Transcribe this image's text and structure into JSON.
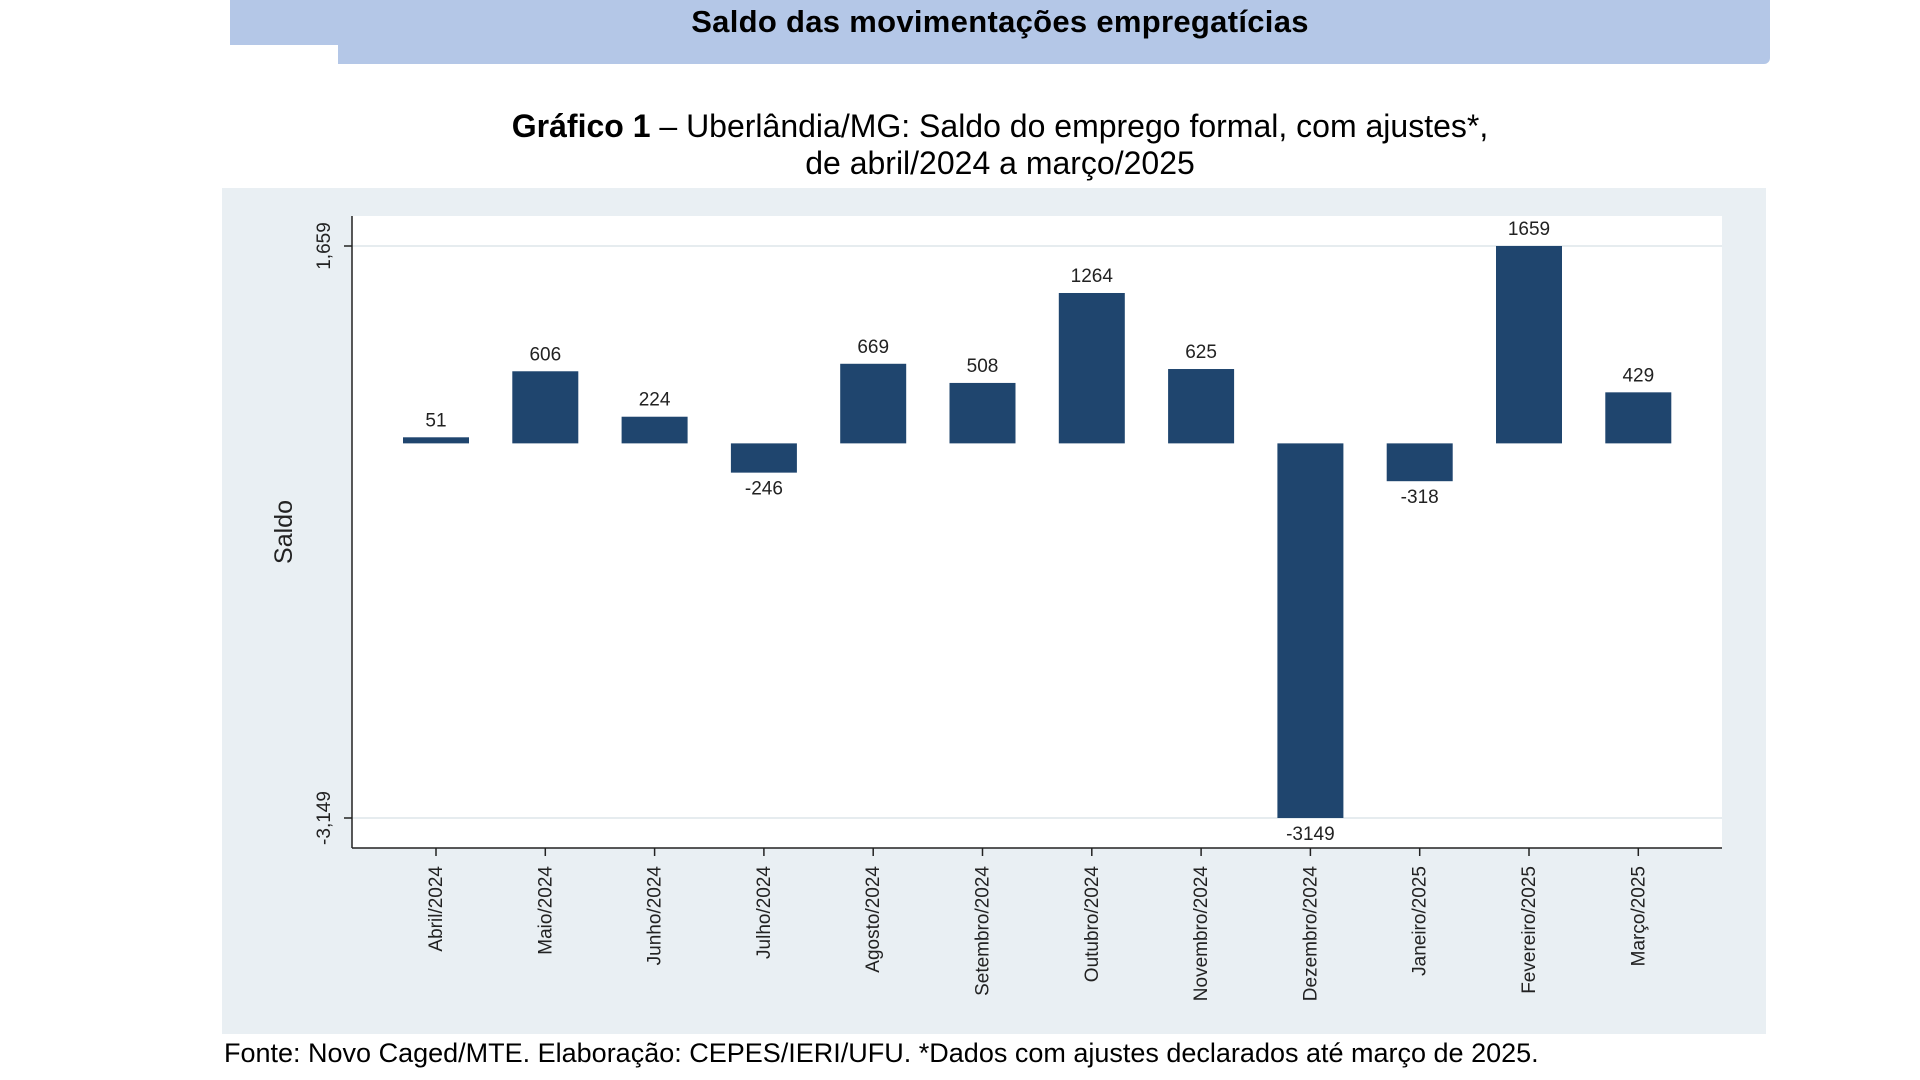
{
  "header": {
    "title": "Saldo das movimentações empregatícias"
  },
  "figure": {
    "label": "Gráfico 1",
    "title_rest": " – Uberlândia/MG: Saldo do emprego formal, com ajustes*,",
    "title_line2": "de abril/2024 a março/2025"
  },
  "colors": {
    "bar": "#1f456e",
    "panel": "#e9eff3",
    "plot_bg": "#ffffff",
    "header_band": "#b4c7e7"
  },
  "chart_data": {
    "type": "bar",
    "title": "Uberlândia/MG: Saldo do emprego formal, com ajustes*, de abril/2024 a março/2025",
    "ylabel": "Saldo",
    "xlabel": "",
    "categories": [
      "Abril/2024",
      "Maio/2024",
      "Junho/2024",
      "Julho/2024",
      "Agosto/2024",
      "Setembro/2024",
      "Outubro/2024",
      "Novembro/2024",
      "Dezembro/2024",
      "Janeiro/2025",
      "Fevereiro/2025",
      "Março/2025"
    ],
    "values": [
      51,
      606,
      224,
      -246,
      669,
      508,
      1264,
      625,
      -3149,
      -318,
      1659,
      429
    ],
    "data_labels": [
      "51",
      "606",
      "224",
      "-246",
      "669",
      "508",
      "1264",
      "625",
      "-3149",
      "-318",
      "1659",
      "429"
    ],
    "yticks": [
      1659,
      -3149
    ],
    "ytick_labels": [
      "1,659",
      "-3,149"
    ],
    "ylim": [
      -3400,
      1900
    ],
    "grid": true
  },
  "source": {
    "text": "Fonte: Novo Caged/MTE. Elaboração: CEPES/IERI/UFU. *Dados com ajustes declarados até março de 2025."
  }
}
